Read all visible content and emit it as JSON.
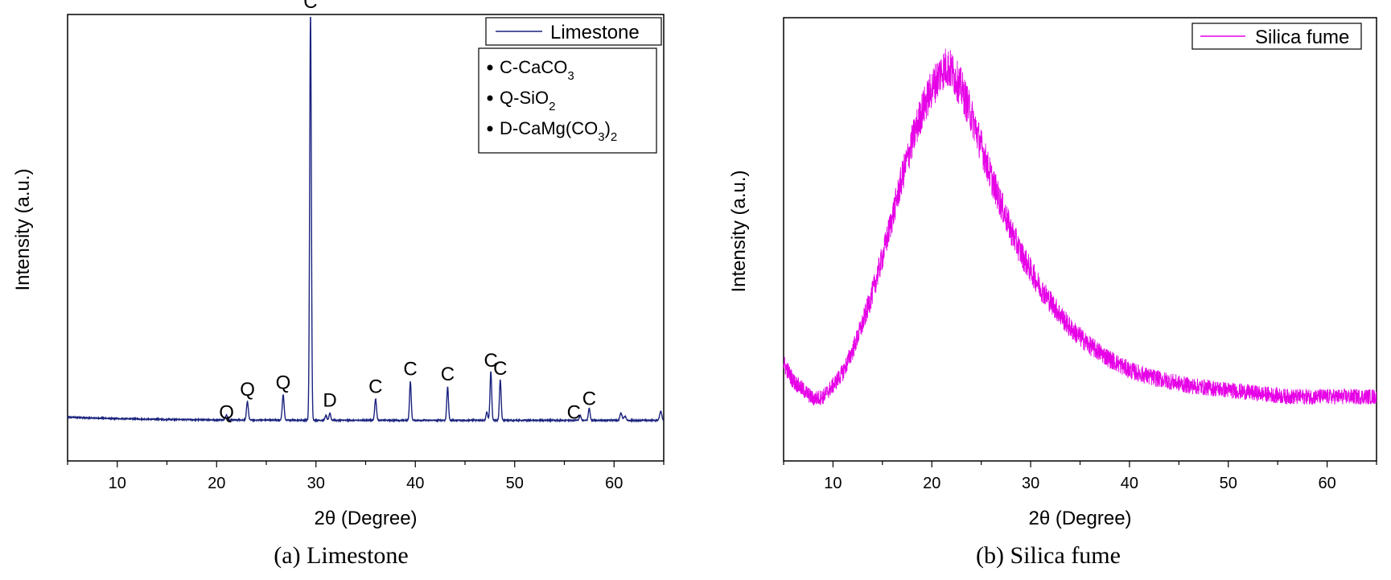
{
  "chart_data": [
    {
      "type": "line",
      "caption": "(a) Limestone",
      "xlabel": "2θ (Degree)",
      "ylabel": "Intensity (a.u.)",
      "xlim": [
        5,
        65
      ],
      "ylim": [
        0,
        110
      ],
      "x_ticks": [
        10,
        20,
        30,
        40,
        50,
        60
      ],
      "grid": false,
      "line_color": "#1a237e",
      "legend": {
        "position": "top-right",
        "entries": [
          "Limestone"
        ]
      },
      "phase_key": [
        {
          "label": "C-CaCO",
          "sub": "3",
          "tail": "",
          "sub2": ""
        },
        {
          "label": "Q-SiO",
          "sub": "2",
          "tail": "",
          "sub2": ""
        },
        {
          "label": "D-CaMg(CO",
          "sub": "3",
          "tail": ")",
          "sub2": "2"
        }
      ],
      "baseline": 10,
      "peaks": [
        {
          "x": 21.0,
          "h": 1.2,
          "w": 0.15,
          "label": "Q"
        },
        {
          "x": 23.1,
          "h": 4.5,
          "w": 0.13,
          "label": "Q"
        },
        {
          "x": 26.7,
          "h": 6.2,
          "w": 0.13,
          "label": "Q"
        },
        {
          "x": 29.45,
          "h": 100,
          "w": 0.12,
          "label": "C"
        },
        {
          "x": 31.0,
          "h": 1.2,
          "w": 0.12,
          "label": ""
        },
        {
          "x": 31.4,
          "h": 1.8,
          "w": 0.12,
          "label": "D"
        },
        {
          "x": 36.0,
          "h": 5.2,
          "w": 0.13,
          "label": "C"
        },
        {
          "x": 39.5,
          "h": 9.5,
          "w": 0.12,
          "label": "C"
        },
        {
          "x": 43.25,
          "h": 8.2,
          "w": 0.12,
          "label": "C"
        },
        {
          "x": 47.2,
          "h": 2.0,
          "w": 0.12,
          "label": ""
        },
        {
          "x": 47.6,
          "h": 12.0,
          "w": 0.12,
          "label": "C"
        },
        {
          "x": 48.55,
          "h": 10.0,
          "w": 0.12,
          "label": "C"
        },
        {
          "x": 56.6,
          "h": 1.2,
          "w": 0.12,
          "label": "C"
        },
        {
          "x": 57.5,
          "h": 3.0,
          "w": 0.12,
          "label": "C"
        },
        {
          "x": 60.7,
          "h": 1.8,
          "w": 0.15,
          "label": ""
        },
        {
          "x": 61.1,
          "h": 1.0,
          "w": 0.15,
          "label": ""
        },
        {
          "x": 64.7,
          "h": 2.2,
          "w": 0.15,
          "label": ""
        }
      ]
    },
    {
      "type": "line",
      "caption": "(b) Silica fume",
      "xlabel": "2θ (Degree)",
      "ylabel": "Intensity (a.u.)",
      "xlim": [
        5,
        65
      ],
      "ylim": [
        0,
        100
      ],
      "x_ticks": [
        10,
        20,
        30,
        40,
        50,
        60
      ],
      "grid": false,
      "line_color": "#e600e6",
      "legend": {
        "position": "top-right",
        "entries": [
          "Silica fume"
        ]
      },
      "profile": {
        "x": [
          5,
          6,
          7,
          8,
          9,
          10,
          11,
          12,
          13,
          14,
          15,
          16,
          17,
          18,
          19,
          20,
          21,
          21.5,
          22,
          23,
          24,
          25,
          26,
          27,
          28,
          29,
          30,
          31,
          32,
          33,
          34,
          35,
          36,
          37,
          38,
          40,
          42,
          44,
          46,
          48,
          50,
          52,
          54,
          56,
          58,
          60,
          62,
          65
        ],
        "y": [
          22,
          18,
          16,
          14,
          14.5,
          17,
          20,
          25,
          31,
          38,
          46,
          55,
          64,
          72,
          79,
          84,
          88,
          89,
          88,
          84,
          78,
          71,
          64,
          58,
          52,
          47,
          43,
          39,
          36,
          33,
          30,
          28,
          26,
          24.5,
          23,
          20.5,
          19,
          18,
          17,
          16.5,
          16,
          15.5,
          15,
          14.5,
          14.5,
          14.5,
          14.5,
          14.5
        ]
      }
    }
  ]
}
